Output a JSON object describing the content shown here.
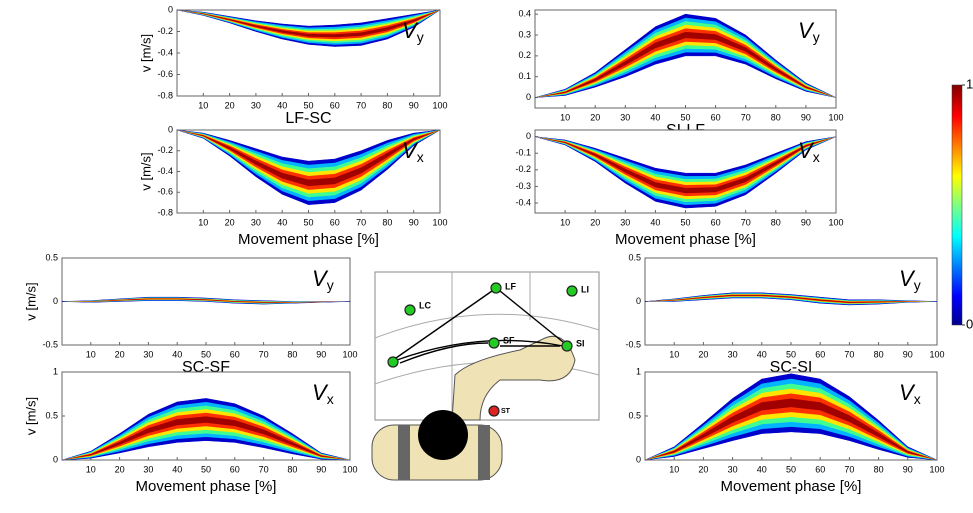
{
  "chart_data": [
    {
      "type": "band",
      "title": "LF-SC",
      "v_main": "V",
      "v_sub": "y",
      "ylabel": "v [m/s]",
      "x": [
        0,
        10,
        20,
        30,
        40,
        50,
        60,
        70,
        80,
        90,
        100
      ],
      "lower": [
        0,
        -0.05,
        -0.12,
        -0.2,
        -0.27,
        -0.32,
        -0.34,
        -0.33,
        -0.27,
        -0.16,
        0
      ],
      "upper": [
        0,
        -0.02,
        -0.06,
        -0.1,
        -0.13,
        -0.15,
        -0.14,
        -0.12,
        -0.08,
        -0.04,
        0
      ],
      "xlim": [
        0,
        100
      ],
      "xticks": [
        10,
        20,
        30,
        40,
        50,
        60,
        70,
        80,
        90,
        100
      ],
      "ylim": [
        -0.8,
        0
      ],
      "yticks": [
        0,
        -0.2,
        -0.4,
        -0.6,
        -0.8
      ]
    },
    {
      "type": "band",
      "v_main": "V",
      "v_sub": "x",
      "ylabel": "v [m/s]",
      "xlabel": "Movement phase [%]",
      "x": [
        0,
        10,
        20,
        30,
        40,
        50,
        60,
        70,
        80,
        90,
        100
      ],
      "lower": [
        0,
        -0.08,
        -0.25,
        -0.45,
        -0.62,
        -0.72,
        -0.7,
        -0.58,
        -0.38,
        -0.15,
        0
      ],
      "upper": [
        0,
        -0.03,
        -0.1,
        -0.18,
        -0.26,
        -0.3,
        -0.28,
        -0.2,
        -0.1,
        -0.03,
        0
      ],
      "xlim": [
        0,
        100
      ],
      "xticks": [
        10,
        20,
        30,
        40,
        50,
        60,
        70,
        80,
        90,
        100
      ],
      "ylim": [
        -0.8,
        0
      ],
      "yticks": [
        0,
        -0.2,
        -0.4,
        -0.6,
        -0.8
      ]
    },
    {
      "type": "band",
      "title": "SI-LF",
      "v_main": "V",
      "v_sub": "y",
      "x": [
        0,
        10,
        20,
        30,
        40,
        50,
        60,
        70,
        80,
        90,
        100
      ],
      "lower": [
        0,
        0.01,
        0.05,
        0.1,
        0.16,
        0.2,
        0.2,
        0.16,
        0.09,
        0.03,
        0
      ],
      "upper": [
        0,
        0.04,
        0.12,
        0.23,
        0.34,
        0.4,
        0.38,
        0.3,
        0.18,
        0.07,
        0
      ],
      "xlim": [
        0,
        100
      ],
      "xticks": [
        10,
        20,
        30,
        40,
        50,
        60,
        70,
        80,
        90,
        100
      ],
      "ylim": [
        -0.05,
        0.42
      ],
      "yticks": [
        0,
        0.1,
        0.2,
        0.3,
        0.4
      ]
    },
    {
      "type": "band",
      "v_main": "V",
      "v_sub": "x",
      "xlabel": "Movement phase [%]",
      "x": [
        0,
        10,
        20,
        30,
        40,
        50,
        60,
        70,
        80,
        90,
        100
      ],
      "lower": [
        0,
        -0.05,
        -0.15,
        -0.28,
        -0.39,
        -0.43,
        -0.42,
        -0.35,
        -0.22,
        -0.08,
        0
      ],
      "upper": [
        0,
        -0.02,
        -0.07,
        -0.13,
        -0.19,
        -0.22,
        -0.22,
        -0.17,
        -0.1,
        -0.03,
        0
      ],
      "xlim": [
        0,
        100
      ],
      "xticks": [
        10,
        20,
        30,
        40,
        50,
        60,
        70,
        80,
        90,
        100
      ],
      "ylim": [
        -0.46,
        0.04
      ],
      "yticks": [
        0,
        -0.1,
        -0.2,
        -0.3,
        -0.4
      ]
    },
    {
      "type": "band",
      "title": "SC-SF",
      "v_main": "V",
      "v_sub": "y",
      "ylabel": "v [m/s]",
      "x": [
        0,
        10,
        20,
        30,
        40,
        50,
        60,
        70,
        80,
        90,
        100
      ],
      "lower": [
        0,
        -0.01,
        0,
        0.01,
        0.01,
        0,
        -0.02,
        -0.03,
        -0.02,
        -0.01,
        0
      ],
      "upper": [
        0,
        0.01,
        0.03,
        0.05,
        0.05,
        0.04,
        0.02,
        0.01,
        0,
        0,
        0
      ],
      "xlim": [
        0,
        100
      ],
      "xticks": [
        10,
        20,
        30,
        40,
        50,
        60,
        70,
        80,
        90,
        100
      ],
      "ylim": [
        -0.5,
        0.5
      ],
      "yticks": [
        -0.5,
        0,
        0.5
      ]
    },
    {
      "type": "band",
      "v_main": "V",
      "v_sub": "x",
      "ylabel": "v [m/s]",
      "xlabel": "Movement phase [%]",
      "x": [
        0,
        10,
        20,
        30,
        40,
        50,
        60,
        70,
        80,
        90,
        100
      ],
      "lower": [
        0,
        0.02,
        0.08,
        0.15,
        0.2,
        0.22,
        0.2,
        0.14,
        0.07,
        0.01,
        0
      ],
      "upper": [
        0,
        0.1,
        0.3,
        0.52,
        0.66,
        0.7,
        0.64,
        0.5,
        0.3,
        0.08,
        0
      ],
      "xlim": [
        0,
        100
      ],
      "xticks": [
        10,
        20,
        30,
        40,
        50,
        60,
        70,
        80,
        90,
        100
      ],
      "ylim": [
        0,
        1
      ],
      "yticks": [
        0,
        0.5,
        1
      ]
    },
    {
      "type": "band",
      "title": "SC-SI",
      "v_main": "V",
      "v_sub": "y",
      "x": [
        0,
        10,
        20,
        30,
        40,
        50,
        60,
        70,
        80,
        90,
        100
      ],
      "lower": [
        0,
        0,
        0.02,
        0.04,
        0.04,
        0.02,
        -0.02,
        -0.04,
        -0.03,
        -0.01,
        0
      ],
      "upper": [
        0,
        0.03,
        0.07,
        0.1,
        0.1,
        0.08,
        0.05,
        0.02,
        0.02,
        0.01,
        0
      ],
      "xlim": [
        0,
        100
      ],
      "xticks": [
        10,
        20,
        30,
        40,
        50,
        60,
        70,
        80,
        90,
        100
      ],
      "ylim": [
        -0.5,
        0.5
      ],
      "yticks": [
        -0.5,
        0,
        0.5
      ]
    },
    {
      "type": "band",
      "v_main": "V",
      "v_sub": "x",
      "xlabel": "Movement phase [%]",
      "x": [
        0,
        10,
        20,
        30,
        40,
        50,
        60,
        70,
        80,
        90,
        100
      ],
      "lower": [
        0,
        0.04,
        0.13,
        0.22,
        0.3,
        0.32,
        0.3,
        0.22,
        0.12,
        0.03,
        0
      ],
      "upper": [
        0,
        0.15,
        0.42,
        0.7,
        0.92,
        0.98,
        0.92,
        0.72,
        0.45,
        0.15,
        0
      ],
      "xlim": [
        0,
        100
      ],
      "xticks": [
        10,
        20,
        30,
        40,
        50,
        60,
        70,
        80,
        90,
        100
      ],
      "ylim": [
        0,
        1
      ],
      "yticks": [
        0,
        0.5,
        1
      ]
    }
  ],
  "colorbar": {
    "ticks": [
      0,
      1
    ]
  },
  "diagram": {
    "nodes": [
      "LC",
      "LF",
      "LI",
      "SF",
      "SI",
      "ST"
    ]
  }
}
